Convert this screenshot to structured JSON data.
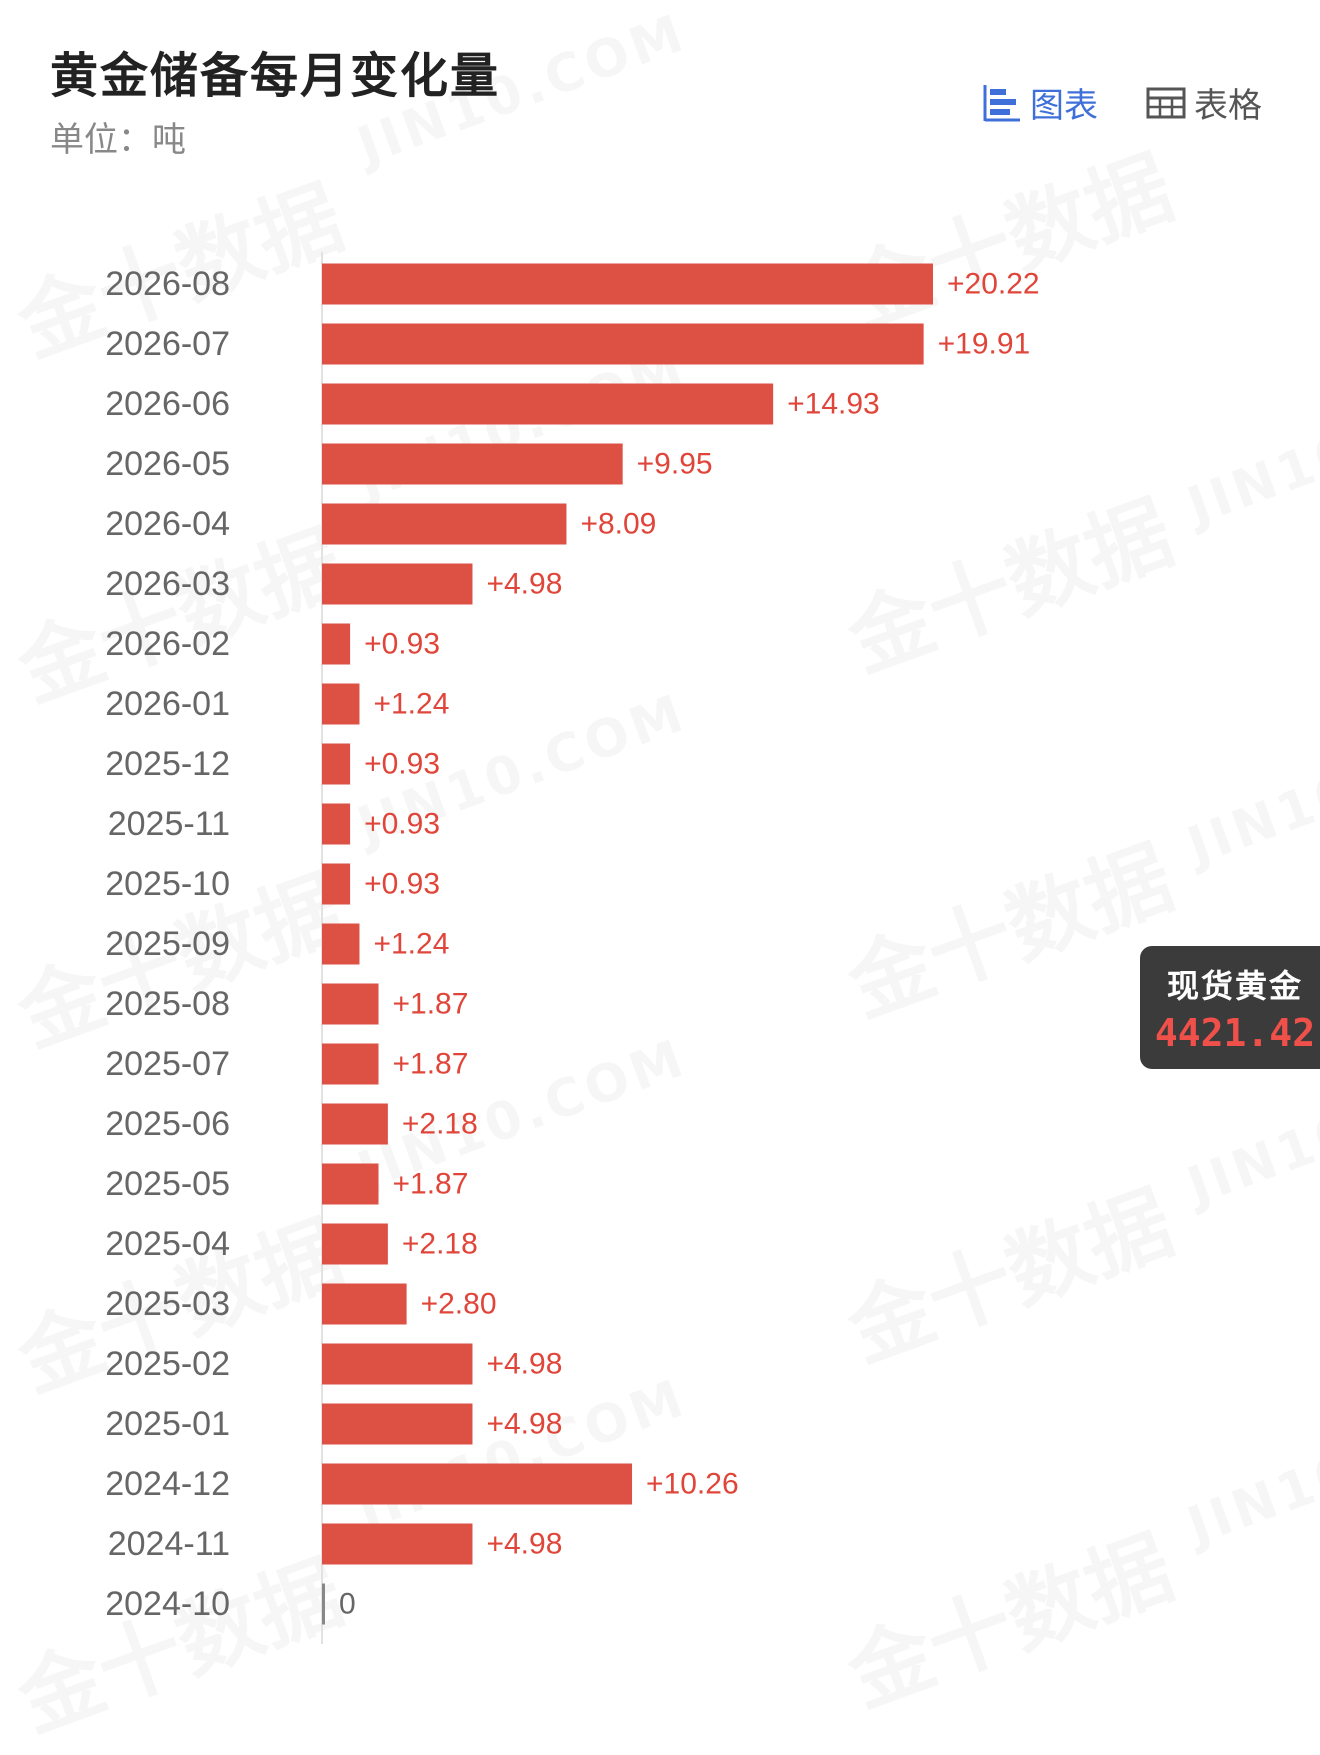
{
  "header": {
    "title": "黄金储备每月变化量",
    "unit": "单位：吨",
    "toggle_chart": "图表",
    "toggle_table": "表格",
    "active_view": "chart"
  },
  "widget": {
    "label": "现货黄金",
    "value": "4421.42"
  },
  "watermark": {
    "cn": "金十数据",
    "en": "JIN10.COM"
  },
  "colors": {
    "bar": "#dd5044",
    "accent": "#3f6fd8",
    "price": "#f0504a"
  },
  "chart_data": {
    "type": "bar",
    "orientation": "horizontal",
    "title": "黄金储备每月变化量",
    "ylabel": "单位：吨",
    "categories": [
      "2026-08",
      "2026-07",
      "2026-06",
      "2026-05",
      "2026-04",
      "2026-03",
      "2026-02",
      "2026-01",
      "2025-12",
      "2025-11",
      "2025-10",
      "2025-09",
      "2025-08",
      "2025-07",
      "2025-06",
      "2025-05",
      "2025-04",
      "2025-03",
      "2025-02",
      "2025-01",
      "2024-12",
      "2024-11",
      "2024-10"
    ],
    "values": [
      20.22,
      19.91,
      14.93,
      9.95,
      8.09,
      4.98,
      0.93,
      1.24,
      0.93,
      0.93,
      0.93,
      1.24,
      1.87,
      1.87,
      2.18,
      1.87,
      2.18,
      2.8,
      4.98,
      4.98,
      10.26,
      4.98,
      0
    ],
    "labels": [
      "+20.22",
      "+19.91",
      "+14.93",
      "+9.95",
      "+8.09",
      "+4.98",
      "+0.93",
      "+1.24",
      "+0.93",
      "+0.93",
      "+0.93",
      "+1.24",
      "+1.87",
      "+1.87",
      "+2.18",
      "+1.87",
      "+2.18",
      "+2.80",
      "+4.98",
      "+4.98",
      "+10.26",
      "+4.98",
      "0"
    ],
    "xlim": [
      0,
      20.22
    ],
    "grid": false,
    "legend": "none"
  }
}
